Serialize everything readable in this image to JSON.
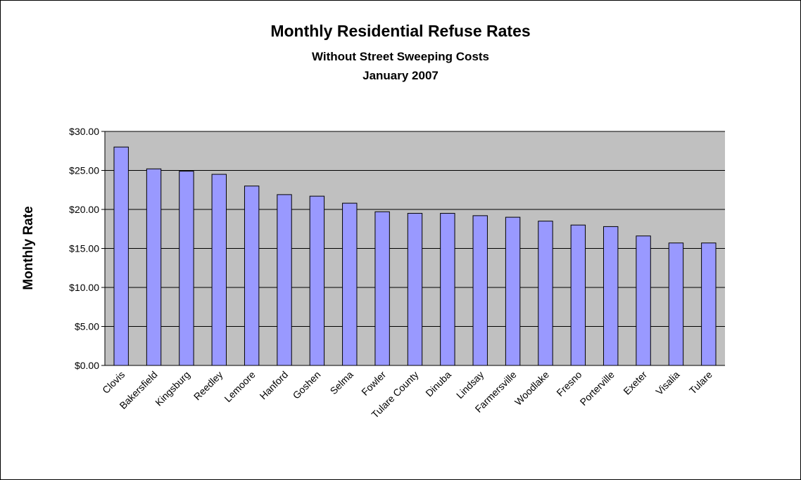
{
  "chart_data": {
    "type": "bar",
    "title": "Monthly Residential Refuse Rates",
    "subtitle": "Without Street Sweeping Costs",
    "subtitle2": "January 2007",
    "y_label": "Monthly Rate",
    "categories": [
      "Clovis",
      "Bakersfield",
      "Kingsburg",
      "Reedley",
      "Lemoore",
      "Hanford",
      "Goshen",
      "Selma",
      "Fowler",
      "Tulare County",
      "Dinuba",
      "Lindsay",
      "Farmersville",
      "Woodlake",
      "Fresno",
      "Porterville",
      "Exeter",
      "Visalia",
      "Tulare"
    ],
    "values": [
      28.0,
      25.2,
      24.9,
      24.5,
      23.0,
      21.9,
      21.7,
      20.8,
      19.7,
      19.5,
      19.5,
      19.2,
      19.0,
      18.5,
      18.0,
      17.8,
      16.6,
      15.7,
      15.7
    ],
    "color": "#9999ff",
    "ylim": [
      0,
      30
    ],
    "yticks": [
      {
        "value": 0,
        "label": "$0.00"
      },
      {
        "value": 5,
        "label": "$5.00"
      },
      {
        "value": 10,
        "label": "$10.00"
      },
      {
        "value": 15,
        "label": "$15.00"
      },
      {
        "value": 20,
        "label": "$20.00"
      },
      {
        "value": 25,
        "label": "$25.00"
      },
      {
        "value": 30,
        "label": "$30.00"
      }
    ],
    "grid": true
  }
}
